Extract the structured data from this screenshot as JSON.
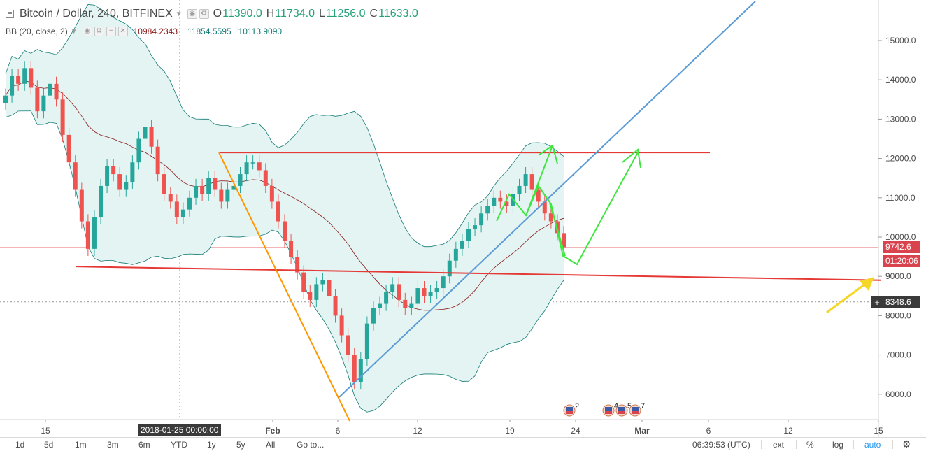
{
  "legend": {
    "symbol": "Bitcoin / Dollar, 240, BITFINEX",
    "open_label": "O",
    "open": "11390.0",
    "high_label": "H",
    "high": "11734.0",
    "low_label": "L",
    "low": "11256.0",
    "close_label": "C",
    "close": "11633.0"
  },
  "indicator": {
    "name": "BB (20, close, 2)",
    "basis": "10984.2343",
    "upper": "11854.5595",
    "lower": "10113.9090",
    "basis_color": "#8b1a1a",
    "upper_color": "#137a76",
    "lower_color": "#137a76"
  },
  "price_axis": {
    "ticks": [
      "15000.0",
      "14000.0",
      "13000.0",
      "12000.0",
      "11000.0",
      "10000.0",
      "9000.0",
      "8000.0",
      "7000.0",
      "6000.0"
    ],
    "last_price": "9742.6",
    "countdown": "01:20:06",
    "crosshair_price": "8348.6"
  },
  "time_axis": {
    "ticks": [
      "15",
      "Feb",
      "6",
      "12",
      "19",
      "24",
      "Mar",
      "6",
      "12",
      "15"
    ],
    "crosshair_date": "2018-01-25 00:00:00"
  },
  "events": {
    "single_count": "2",
    "group_counts": [
      "4",
      "5",
      "7"
    ]
  },
  "toolbar": {
    "ranges": [
      "1d",
      "5d",
      "1m",
      "3m",
      "6m",
      "YTD",
      "1y",
      "5y",
      "All"
    ],
    "goto": "Go to...",
    "clock": "06:39:53 (UTC)",
    "ext": "ext",
    "percent": "%",
    "log": "log",
    "auto": "auto",
    "settings_icon": "gear-icon"
  },
  "colors": {
    "up_candle": "#26a69a",
    "down_candle": "#ef5350",
    "band_fill": "#e3f4f2",
    "support_resistance": "#e53935",
    "downtrend_line": "#ff9800",
    "uptrend_line": "#5b9bd5",
    "projection": "#3ee63e",
    "annotation_arrow": "#f5d72a"
  },
  "chart_data": {
    "type": "candlestick",
    "title": "Bitcoin / Dollar, 240, BITFINEX",
    "ylim": [
      5300,
      15800
    ],
    "y_ticks": [
      6000,
      7000,
      8000,
      9000,
      10000,
      11000,
      12000,
      13000,
      14000,
      15000
    ],
    "x_ticks": [
      "15",
      "Feb",
      "6",
      "12",
      "19",
      "24",
      "Mar",
      "6",
      "12",
      "15"
    ],
    "series": [
      {
        "name": "Bitcoin / Dollar",
        "close": [
          13600,
          14100,
          13900,
          14300,
          13800,
          13200,
          13600,
          13900,
          13500,
          12600,
          11900,
          11200,
          10400,
          9700,
          10500,
          11300,
          11800,
          11600,
          11200,
          11400,
          11900,
          12500,
          12800,
          12300,
          11600,
          11100,
          10900,
          10500,
          10700,
          11000,
          11300,
          11100,
          11500,
          11200,
          10900,
          11200,
          11300,
          11600,
          11900,
          11900,
          11700,
          11300,
          10900,
          10400,
          9900,
          9500,
          9100,
          8600,
          8400,
          8800,
          8900,
          8500,
          8000,
          7500,
          7000,
          6300,
          6900,
          7800,
          8200,
          8300,
          8600,
          8800,
          8400,
          8200,
          8300,
          8700,
          8500,
          8600,
          8700,
          9000,
          9400,
          9700,
          9900,
          10200,
          10300,
          10600,
          10800,
          11000,
          10900,
          10800,
          11100,
          11300,
          11600,
          11200,
          10900,
          10600,
          10400,
          10100,
          9742.6
        ]
      }
    ],
    "annotations": {
      "resistance": 12150,
      "support_start": 9250,
      "support_end": 9150,
      "projection_low": 9220,
      "projection_high": 12150
    }
  }
}
